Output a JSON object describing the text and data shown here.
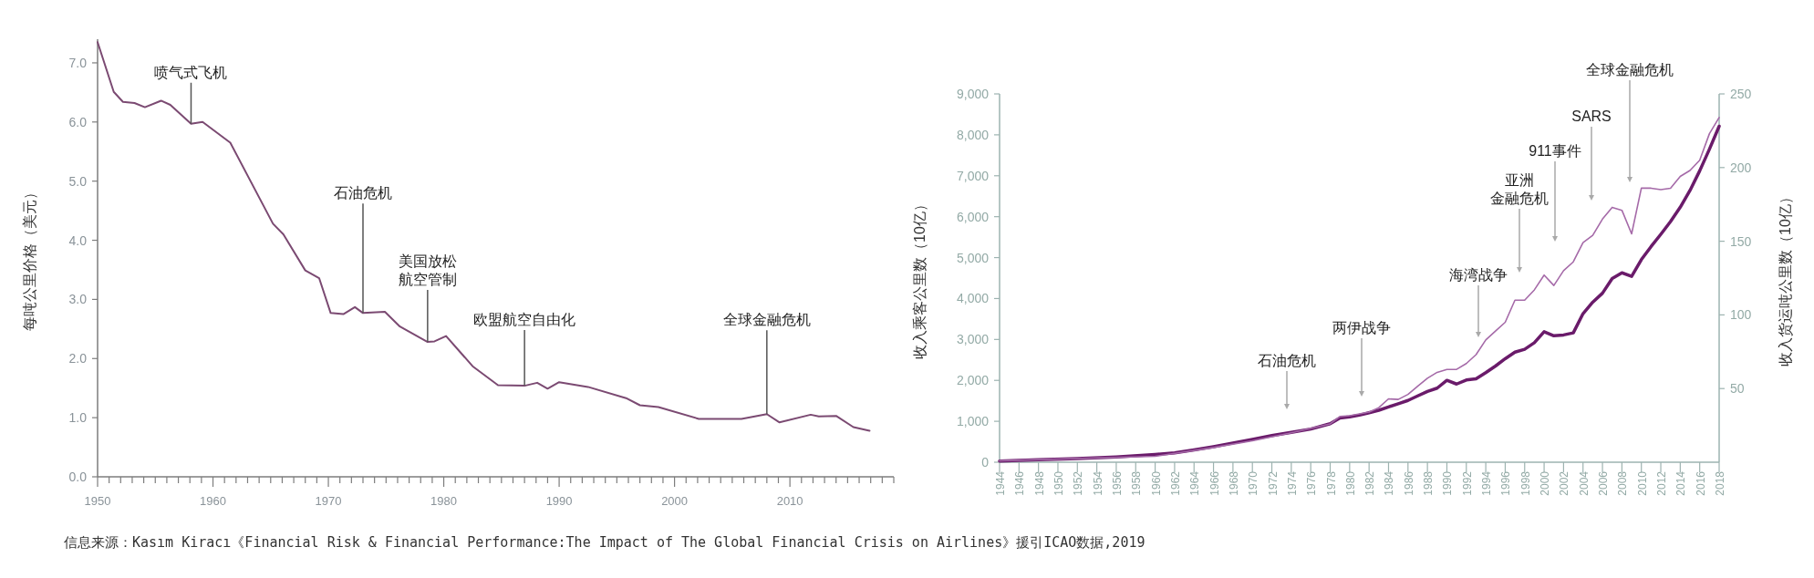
{
  "chart_data": [
    {
      "type": "line",
      "ylabel": "每吨公里价格（美元）",
      "xlim": [
        1950,
        2019
      ],
      "ylim": [
        0,
        7.4
      ],
      "xticks": [
        1950,
        {
          "value": 1951,
          "label": null
        },
        {
          "value": 1952,
          "label": null
        },
        {
          "value": 1953,
          "label": null
        },
        {
          "value": 1954,
          "label": null
        },
        {
          "value": 1955,
          "label": null
        },
        {
          "value": 1956,
          "label": null
        },
        {
          "value": 1957,
          "label": null
        },
        {
          "value": 1958,
          "label": null
        },
        {
          "value": 1959,
          "label": null
        },
        1960,
        {
          "value": 1961,
          "label": null
        },
        {
          "value": 1962,
          "label": null
        },
        {
          "value": 1963,
          "label": null
        },
        {
          "value": 1964,
          "label": null
        },
        {
          "value": 1965,
          "label": null
        },
        {
          "value": 1966,
          "label": null
        },
        {
          "value": 1967,
          "label": null
        },
        {
          "value": 1968,
          "label": null
        },
        {
          "value": 1969,
          "label": null
        },
        1970,
        {
          "value": 1971,
          "label": null
        },
        {
          "value": 1972,
          "label": null
        },
        {
          "value": 1973,
          "label": null
        },
        {
          "value": 1974,
          "label": null
        },
        {
          "value": 1975,
          "label": null
        },
        {
          "value": 1976,
          "label": null
        },
        {
          "value": 1977,
          "label": null
        },
        {
          "value": 1978,
          "label": null
        },
        {
          "value": 1979,
          "label": null
        },
        1980,
        {
          "value": 1981,
          "label": null
        },
        {
          "value": 1982,
          "label": null
        },
        {
          "value": 1983,
          "label": null
        },
        {
          "value": 1984,
          "label": null
        },
        {
          "value": 1985,
          "label": null
        },
        {
          "value": 1986,
          "label": null
        },
        {
          "value": 1987,
          "label": null
        },
        {
          "value": 1988,
          "label": null
        },
        {
          "value": 1989,
          "label": null
        },
        1990,
        {
          "value": 1991,
          "label": null
        },
        {
          "value": 1992,
          "label": null
        },
        {
          "value": 1993,
          "label": null
        },
        {
          "value": 1994,
          "label": null
        },
        {
          "value": 1995,
          "label": null
        },
        {
          "value": 1996,
          "label": null
        },
        {
          "value": 1997,
          "label": null
        },
        {
          "value": 1998,
          "label": null
        },
        {
          "value": 1999,
          "label": null
        },
        2000,
        {
          "value": 2001,
          "label": null
        },
        {
          "value": 2002,
          "label": null
        },
        {
          "value": 2003,
          "label": null
        },
        {
          "value": 2004,
          "label": null
        },
        {
          "value": 2005,
          "label": null
        },
        {
          "value": 2006,
          "label": null
        },
        {
          "value": 2007,
          "label": null
        },
        {
          "value": 2008,
          "label": null
        },
        {
          "value": 2009,
          "label": null
        },
        2010,
        {
          "value": 2011,
          "label": null
        },
        {
          "value": 2012,
          "label": null
        },
        {
          "value": 2013,
          "label": null
        },
        {
          "value": 2014,
          "label": null
        },
        {
          "value": 2015,
          "label": null
        },
        {
          "value": 2016,
          "label": null
        },
        {
          "value": 2017,
          "label": null
        },
        {
          "value": 2018,
          "label": null
        },
        {
          "value": 2019,
          "label": null
        }
      ],
      "yticks": [
        {
          "value": 0,
          "label": "0.0"
        },
        {
          "value": 1,
          "label": "1.0"
        },
        {
          "value": 2,
          "label": "2.0"
        },
        {
          "value": 3,
          "label": "3.0"
        },
        {
          "value": 4,
          "label": "4.0"
        },
        {
          "value": 5,
          "label": "5.0"
        },
        {
          "value": 6,
          "label": "6.0"
        },
        {
          "value": 7,
          "label": "7.0"
        }
      ],
      "x": [
        1950,
        1951.4,
        1952.2,
        1953.2,
        1954.1,
        1955.5,
        1956.3,
        1958.1,
        1959.1,
        1961.5,
        1965.2,
        1966.1,
        1968,
        1969.2,
        1970.2,
        1971.3,
        1972.3,
        1973,
        1974.9,
        1976.2,
        1978.6,
        1979.2,
        1980.2,
        1982.5,
        1984.7,
        1987,
        1988.1,
        1989,
        1990,
        1992.5,
        1995.8,
        1997,
        1998.6,
        2002.1,
        2005.8,
        2008,
        2009.1,
        2011.8,
        2012.5,
        2014,
        2015.5,
        2016.9
      ],
      "values": [
        7.35,
        6.51,
        6.34,
        6.32,
        6.25,
        6.36,
        6.29,
        5.97,
        6.0,
        5.65,
        4.28,
        4.1,
        3.49,
        3.36,
        2.77,
        2.75,
        2.87,
        2.77,
        2.79,
        2.54,
        2.28,
        2.29,
        2.38,
        1.87,
        1.55,
        1.54,
        1.59,
        1.49,
        1.6,
        1.52,
        1.33,
        1.21,
        1.18,
        0.98,
        0.98,
        1.06,
        0.92,
        1.05,
        1.02,
        1.03,
        0.84,
        0.78
      ],
      "color": "#7b4a72",
      "marker": "none",
      "line_style": "solid",
      "grid": false,
      "annotations": [
        {
          "text": "喷气式飞机",
          "x": 1958.1,
          "y": 5.97
        },
        {
          "text": "石油危机",
          "x": 1973,
          "y": 2.77
        },
        {
          "text": "美国放松航空管制",
          "x": 1978.6,
          "y": 2.28
        },
        {
          "text": "欧盟航空自由化",
          "x": 1987,
          "y": 1.54
        },
        {
          "text": "全球金融危机",
          "x": 2008,
          "y": 1.06
        },
        "信息来源：Kasım Kiracı《Financial Risk & Financial Performance:The Impact of The Global Financial Crisis on Airlines》援引ICAO数据,2019"
      ]
    },
    {
      "type": "line",
      "ylabel": "收入乘客公里数（10亿）",
      "y2label": "收入货运吨公里数（10亿）",
      "xlim": [
        1944,
        2018
      ],
      "ylim": [
        0,
        9000
      ],
      "y2lim": [
        0,
        250
      ],
      "xticks": [
        1944,
        1946,
        1948,
        1950,
        1952,
        1954,
        1956,
        1958,
        1960,
        1962,
        1964,
        1966,
        1968,
        1970,
        1972,
        1974,
        1976,
        1978,
        1980,
        1982,
        1984,
        1986,
        1988,
        1990,
        1992,
        1994,
        1996,
        1998,
        2000,
        2002,
        2004,
        2006,
        2008,
        2010,
        2012,
        2014,
        2016,
        2018
      ],
      "yticks": [
        0,
        {
          "value": 1000,
          "label": "1,000"
        },
        {
          "value": 2000,
          "label": "2,000"
        },
        {
          "value": 3000,
          "label": "3,000"
        },
        {
          "value": 4000,
          "label": "4,000"
        },
        {
          "value": 5000,
          "label": "5,000"
        },
        {
          "value": 6000,
          "label": "6,000"
        },
        {
          "value": 7000,
          "label": "7,000"
        },
        {
          "value": 8000,
          "label": "8,000"
        },
        {
          "value": 9000,
          "label": "9,000"
        }
      ],
      "y2ticks": [
        50,
        100,
        150,
        200,
        250
      ],
      "marker": "none",
      "line_style": "solid",
      "grid": false,
      "series": [
        {
          "color": "#6a1b6a",
          "x": [
            1944,
            1948,
            1952,
            1956,
            1960,
            1962,
            1964,
            1966,
            1968,
            1970,
            1972,
            1974,
            1976,
            1978,
            1979,
            1980,
            1981,
            1982,
            1983,
            1984,
            1985,
            1986,
            1987,
            1988,
            1989,
            1990,
            1991,
            1992,
            1993,
            1994,
            1995,
            1996,
            1997,
            1998,
            1999,
            2000,
            2001,
            2002,
            2003,
            2004,
            2005,
            2006,
            2007,
            2008,
            2009,
            2010,
            2011,
            2012,
            2013,
            2014,
            2015,
            2016,
            2017,
            2018
          ],
          "values": [
            30,
            60,
            90,
            130,
            190,
            230,
            300,
            380,
            470,
            560,
            650,
            730,
            810,
            940,
            1080,
            1110,
            1150,
            1210,
            1270,
            1350,
            1430,
            1510,
            1620,
            1730,
            1810,
            2000,
            1910,
            2010,
            2040,
            2190,
            2350,
            2530,
            2690,
            2760,
            2920,
            3190,
            3090,
            3110,
            3160,
            3630,
            3910,
            4130,
            4490,
            4630,
            4540,
            4950,
            5270,
            5570,
            5880,
            6230,
            6640,
            7120,
            7650,
            8210
          ]
        },
        {
          "color": "#a56aa8",
          "axis": "y2",
          "x": [
            1944,
            1960,
            1966,
            1970,
            1974,
            1978,
            1979,
            1980,
            1982,
            1983,
            1984,
            1985,
            1986,
            1987,
            1988,
            1989,
            1990,
            1991,
            1992,
            1993,
            1994,
            1995,
            1996,
            1997,
            1998,
            1999,
            2000,
            2001,
            2002,
            2003,
            2004,
            2005,
            2006,
            2007,
            2008,
            2009,
            2010,
            2011,
            2012,
            2013,
            2014,
            2015,
            2016,
            2017,
            2018
          ],
          "values": [
            1,
            4,
            10,
            14.5,
            20,
            26,
            31,
            31.6,
            34,
            37,
            43,
            42.6,
            46,
            51.6,
            57,
            61,
            63,
            63,
            67,
            73,
            83,
            89,
            95,
            110,
            110,
            117,
            127,
            120,
            130,
            136,
            149,
            154,
            165,
            173,
            171,
            155,
            186,
            186,
            185,
            186,
            194,
            198,
            205,
            223,
            234
          ]
        }
      ],
      "annotations": [
        "石油危机",
        "两伊战争",
        "海湾战争",
        "亚洲金融危机",
        "911事件",
        "SARS",
        "全球金融危机"
      ]
    }
  ]
}
